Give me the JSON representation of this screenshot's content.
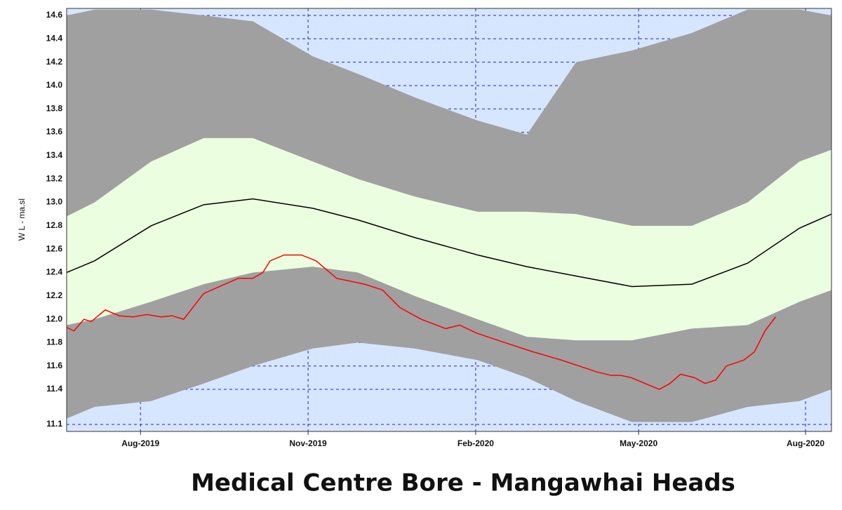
{
  "chart_data": {
    "type": "band-line",
    "title": "Medical Centre  Bore - Mangawhai Heads",
    "y_label": "W L - ma.sl",
    "background": "#d7e6ff",
    "grid": true,
    "grid_color": "#1a1aff",
    "xlim": [
      2019.47,
      2020.62
    ],
    "ylim": [
      11.04,
      14.66
    ],
    "xticks": [
      {
        "value": 2019.581,
        "label": "Aug-2019"
      },
      {
        "value": 2019.833,
        "label": "Nov-2019"
      },
      {
        "value": 2020.085,
        "label": "Feb-2020"
      },
      {
        "value": 2020.33,
        "label": "May-2020"
      },
      {
        "value": 2020.581,
        "label": "Aug-2020"
      }
    ],
    "yticks": [
      11.1,
      11.4,
      11.6,
      11.8,
      {
        "value": 12,
        "label": "12.0"
      },
      12.2,
      12.4,
      12.6,
      12.8,
      {
        "value": 13,
        "label": "13.0"
      },
      13.2,
      13.4,
      13.6,
      13.8,
      {
        "value": 14,
        "label": "14.0"
      },
      14.2,
      14.4,
      14.6
    ],
    "band_x": [
      2019.47,
      2019.512,
      2019.597,
      2019.676,
      2019.75,
      2019.84,
      2019.908,
      2019.993,
      2020.088,
      2020.162,
      2020.236,
      2020.32,
      2020.41,
      2020.494,
      2020.572,
      2020.62
    ],
    "bands": [
      {
        "color": "#a0a0a0",
        "upper": [
          14.6,
          14.65,
          14.65,
          14.6,
          14.55,
          14.25,
          14.1,
          13.9,
          13.7,
          13.58,
          14.2,
          14.3,
          14.45,
          14.65,
          14.65,
          14.6
        ],
        "lower": [
          11.15,
          11.25,
          11.3,
          11.45,
          11.6,
          11.75,
          11.8,
          11.75,
          11.65,
          11.5,
          11.3,
          11.12,
          11.12,
          11.25,
          11.3,
          11.4
        ]
      },
      {
        "color": "#ebffe0",
        "upper": [
          12.88,
          13.0,
          13.35,
          13.55,
          13.55,
          13.35,
          13.2,
          13.05,
          12.92,
          12.92,
          12.9,
          12.8,
          12.8,
          13.0,
          13.35,
          13.45
        ],
        "lower": [
          11.95,
          12.0,
          12.15,
          12.3,
          12.4,
          12.45,
          12.4,
          12.2,
          12.0,
          11.85,
          11.82,
          11.82,
          11.92,
          11.95,
          12.15,
          12.25
        ]
      }
    ],
    "series": [
      {
        "color": "#000000",
        "x": [
          2019.47,
          2019.512,
          2019.597,
          2019.676,
          2019.75,
          2019.84,
          2019.908,
          2019.993,
          2020.088,
          2020.162,
          2020.236,
          2020.32,
          2020.41,
          2020.494,
          2020.572,
          2020.62
        ],
        "values": [
          12.4,
          12.5,
          12.8,
          12.98,
          13.03,
          12.95,
          12.85,
          12.7,
          12.55,
          12.45,
          12.37,
          12.28,
          12.3,
          12.48,
          12.78,
          12.9
        ]
      },
      {
        "color": "#ff0000",
        "x": [
          2019.47,
          2019.481,
          2019.496,
          2019.507,
          2019.528,
          2019.549,
          2019.57,
          2019.591,
          2019.612,
          2019.628,
          2019.646,
          2019.676,
          2019.708,
          2019.728,
          2019.75,
          2019.765,
          2019.776,
          2019.797,
          2019.823,
          2019.845,
          2019.876,
          2019.918,
          2019.945,
          2019.971,
          2020.003,
          2020.04,
          2020.061,
          2020.087,
          2020.129,
          2020.172,
          2020.214,
          2020.267,
          2020.288,
          2020.303,
          2020.319,
          2020.361,
          2020.377,
          2020.393,
          2020.414,
          2020.43,
          2020.446,
          2020.462,
          2020.488,
          2020.504,
          2020.52,
          2020.536
        ],
        "values": [
          11.93,
          11.9,
          12.0,
          11.98,
          12.08,
          12.03,
          12.02,
          12.04,
          12.02,
          12.03,
          12.0,
          12.22,
          12.3,
          12.35,
          12.35,
          12.4,
          12.5,
          12.55,
          12.55,
          12.5,
          12.35,
          12.3,
          12.25,
          12.1,
          12.0,
          11.92,
          11.95,
          11.88,
          11.8,
          11.72,
          11.65,
          11.55,
          11.52,
          11.52,
          11.5,
          11.4,
          11.45,
          11.53,
          11.5,
          11.45,
          11.48,
          11.6,
          11.65,
          11.72,
          11.9,
          12.02
        ]
      }
    ]
  }
}
